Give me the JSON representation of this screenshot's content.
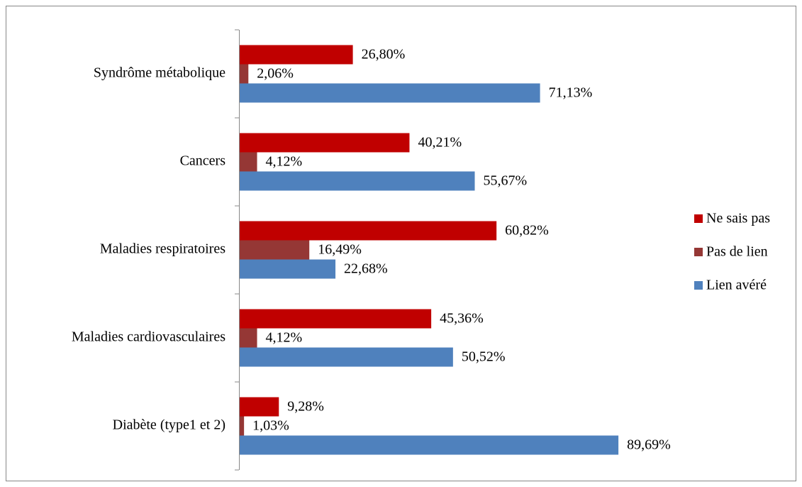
{
  "chart_data": {
    "type": "bar",
    "orientation": "horizontal",
    "categories": [
      "Syndrôme métabolique",
      "Cancers",
      "Maladies respiratoires",
      "Maladies cardiovasculaires",
      "Diabète (type1 et 2)"
    ],
    "series": [
      {
        "name": "Ne sais pas",
        "color": "#c00000",
        "values": [
          26.8,
          40.21,
          60.82,
          45.36,
          9.28
        ],
        "value_labels": [
          "26,80%",
          "40,21%",
          "60,82%",
          "45,36%",
          "9,28%"
        ]
      },
      {
        "name": "Pas de lien",
        "color": "#953735",
        "values": [
          2.06,
          4.12,
          16.49,
          4.12,
          1.03
        ],
        "value_labels": [
          "2,06%",
          "4,12%",
          "16,49%",
          "4,12%",
          "1,03%"
        ]
      },
      {
        "name": "Lien avéré",
        "color": "#4f81bd",
        "values": [
          71.13,
          55.67,
          22.68,
          50.52,
          89.69
        ],
        "value_labels": [
          "71,13%",
          "55,67%",
          "22,68%",
          "50,52%",
          "89,69%"
        ]
      }
    ],
    "legend": "right"
  }
}
